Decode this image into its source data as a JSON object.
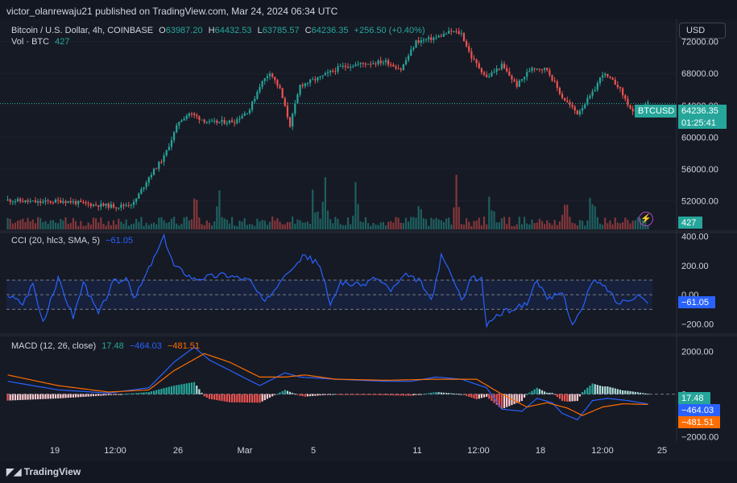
{
  "header": {
    "published_text": "victor_olanrewaju21 published on TradingView.com, Mar 24, 2024 06:34 UTC"
  },
  "footer": {
    "logo_text": "TradingView"
  },
  "currency_button": "USD",
  "legend_main": {
    "symbol": "Bitcoin / U.S. Dollar, 4h, COINBASE",
    "o_label": "O",
    "o_value": "63987.20",
    "h_label": "H",
    "h_value": "64432.53",
    "l_label": "L",
    "l_value": "63785.57",
    "c_label": "C",
    "c_value": "64236.35",
    "change": "+256.50 (+0.40%)",
    "vol_label": "Vol · BTC",
    "vol_value": "427"
  },
  "legend_cci": {
    "label": "CCI (20, hlc3, SMA, 5)",
    "value": "−61.05"
  },
  "legend_macd": {
    "label": "MACD (12, 26, close)",
    "v1": "17.48",
    "v2": "−464.03",
    "v3": "−481.51"
  },
  "tags": {
    "ticker": "BTCUSD",
    "price": "64236.35",
    "countdown": "01:25:41",
    "volume": "427",
    "cci": "−61.05",
    "macd_hist": "17.48",
    "macd_line": "−464.03",
    "macd_signal": "−481.51"
  },
  "colors": {
    "up": "#26a69a",
    "down": "#ef5350",
    "macd": "#2962ff",
    "signal": "#ff6d00",
    "cci": "#2962ff"
  },
  "chart_data": [
    {
      "type": "candlestick",
      "title": "Bitcoin / U.S. Dollar, 4h, COINBASE",
      "x_ticks": [
        "19",
        "12:00",
        "26",
        "Mar",
        "5",
        "11",
        "12:00",
        "18",
        "12:00",
        "25"
      ],
      "y_ticks": [
        "72000.00",
        "68000.00",
        "64000.00",
        "60000.00",
        "56000.00",
        "52000.00"
      ],
      "ylim": [
        48200,
        74800
      ],
      "last_price": 64236.35,
      "anchors": [
        [
          0,
          52100
        ],
        [
          12,
          51800
        ],
        [
          22,
          52000
        ],
        [
          34,
          51500
        ],
        [
          44,
          51300
        ],
        [
          50,
          51700
        ],
        [
          56,
          55000
        ],
        [
          62,
          57500
        ],
        [
          68,
          62000
        ],
        [
          72,
          63000
        ],
        [
          80,
          61800
        ],
        [
          90,
          62000
        ],
        [
          96,
          63500
        ],
        [
          100,
          66500
        ],
        [
          104,
          68200
        ],
        [
          108,
          66000
        ],
        [
          112,
          61500
        ],
        [
          116,
          66500
        ],
        [
          124,
          67500
        ],
        [
          132,
          68800
        ],
        [
          140,
          69200
        ],
        [
          150,
          69500
        ],
        [
          156,
          68500
        ],
        [
          162,
          72000
        ],
        [
          170,
          72500
        ],
        [
          176,
          73300
        ],
        [
          180,
          73000
        ],
        [
          184,
          70000
        ],
        [
          190,
          67500
        ],
        [
          196,
          69000
        ],
        [
          202,
          66500
        ],
        [
          208,
          68800
        ],
        [
          214,
          68500
        ],
        [
          220,
          65000
        ],
        [
          226,
          63000
        ],
        [
          232,
          65500
        ],
        [
          236,
          68000
        ],
        [
          242,
          66500
        ],
        [
          248,
          63000
        ],
        [
          254,
          64236
        ]
      ],
      "candle_count": 255
    },
    {
      "type": "bar",
      "title": "Vol · BTC",
      "last_value": 427,
      "spikes": [
        [
          75,
          2.6
        ],
        [
          84,
          2.2
        ],
        [
          122,
          3.2
        ],
        [
          126,
          3.0
        ],
        [
          138,
          2.6
        ],
        [
          163,
          2.4
        ],
        [
          178,
          2.8
        ],
        [
          192,
          2.7
        ],
        [
          221,
          2.4
        ],
        [
          232,
          2.5
        ]
      ]
    },
    {
      "type": "line",
      "title": "CCI (20, hlc3, SMA, 5)",
      "y_ticks": [
        "400.00",
        "200.00",
        "0.00",
        "−200.00"
      ],
      "ylim": [
        -270,
        420
      ],
      "band": [
        -100,
        100
      ],
      "last_value": -61.05,
      "anchors": [
        [
          0,
          0
        ],
        [
          6,
          -60
        ],
        [
          10,
          80
        ],
        [
          14,
          -200
        ],
        [
          20,
          110
        ],
        [
          26,
          -150
        ],
        [
          30,
          80
        ],
        [
          36,
          -130
        ],
        [
          42,
          90
        ],
        [
          48,
          100
        ],
        [
          50,
          -40
        ],
        [
          56,
          180
        ],
        [
          62,
          390
        ],
        [
          66,
          200
        ],
        [
          74,
          110
        ],
        [
          86,
          140
        ],
        [
          96,
          100
        ],
        [
          102,
          -60
        ],
        [
          110,
          150
        ],
        [
          118,
          270
        ],
        [
          124,
          200
        ],
        [
          128,
          -80
        ],
        [
          132,
          90
        ],
        [
          140,
          60
        ],
        [
          146,
          120
        ],
        [
          152,
          30
        ],
        [
          158,
          130
        ],
        [
          164,
          90
        ],
        [
          168,
          -50
        ],
        [
          172,
          260
        ],
        [
          176,
          140
        ],
        [
          180,
          -40
        ],
        [
          184,
          120
        ],
        [
          188,
          100
        ],
        [
          190,
          -210
        ],
        [
          194,
          -140
        ],
        [
          200,
          -100
        ],
        [
          206,
          -60
        ],
        [
          210,
          110
        ],
        [
          214,
          -40
        ],
        [
          220,
          20
        ],
        [
          224,
          -200
        ],
        [
          228,
          -100
        ],
        [
          232,
          100
        ],
        [
          238,
          40
        ],
        [
          242,
          -60
        ],
        [
          246,
          -30
        ],
        [
          250,
          0
        ],
        [
          254,
          -61
        ]
      ]
    },
    {
      "type": "line",
      "title": "MACD (12, 26, close)",
      "y_ticks": [
        "2000.00",
        "0",
        "−2000.00"
      ],
      "ylim": [
        -2200,
        2700
      ],
      "series": [
        {
          "name": "MACD",
          "anchors": [
            [
              0,
              600
            ],
            [
              20,
              200
            ],
            [
              40,
              50
            ],
            [
              56,
              300
            ],
            [
              66,
              1500
            ],
            [
              74,
              2200
            ],
            [
              80,
              1600
            ],
            [
              90,
              1000
            ],
            [
              100,
              400
            ],
            [
              110,
              1000
            ],
            [
              116,
              800
            ],
            [
              130,
              700
            ],
            [
              150,
              600
            ],
            [
              160,
              600
            ],
            [
              170,
              800
            ],
            [
              180,
              700
            ],
            [
              190,
              300
            ],
            [
              196,
              -700
            ],
            [
              204,
              -800
            ],
            [
              210,
              -200
            ],
            [
              216,
              -400
            ],
            [
              220,
              -900
            ],
            [
              226,
              -1200
            ],
            [
              232,
              -300
            ],
            [
              238,
              -200
            ],
            [
              246,
              -300
            ],
            [
              254,
              -464
            ]
          ]
        },
        {
          "name": "Signal",
          "anchors": [
            [
              0,
              900
            ],
            [
              20,
              400
            ],
            [
              40,
              100
            ],
            [
              56,
              200
            ],
            [
              66,
              1100
            ],
            [
              78,
              1900
            ],
            [
              88,
              1500
            ],
            [
              100,
              800
            ],
            [
              110,
              800
            ],
            [
              118,
              900
            ],
            [
              130,
              700
            ],
            [
              150,
              650
            ],
            [
              170,
              700
            ],
            [
              186,
              700
            ],
            [
              196,
              0
            ],
            [
              206,
              -600
            ],
            [
              214,
              -400
            ],
            [
              222,
              -650
            ],
            [
              228,
              -1000
            ],
            [
              236,
              -600
            ],
            [
              244,
              -450
            ],
            [
              254,
              -482
            ]
          ]
        }
      ],
      "histogram": "MACD − Signal",
      "last_values": {
        "histogram": 17.48,
        "macd": -464.03,
        "signal": -481.51
      }
    }
  ]
}
